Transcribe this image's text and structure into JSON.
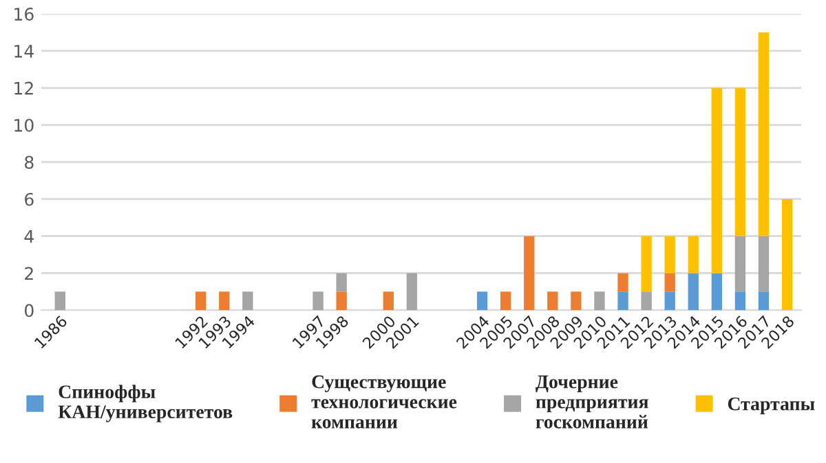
{
  "chart_data": {
    "type": "bar",
    "stacked": true,
    "categories": [
      "1986",
      null,
      null,
      null,
      null,
      null,
      "1992",
      "1993",
      "1994",
      null,
      null,
      "1997",
      "1998",
      null,
      "2000",
      "2001",
      null,
      null,
      "2004",
      "2005",
      "2007",
      "2008",
      "2009",
      "2010",
      "2011",
      "2012",
      "2013",
      "2014",
      "2015",
      "2016",
      "2017",
      "2018"
    ],
    "series": [
      {
        "name": "Спиноффы КАН/университетов",
        "color": "#5b9bd5",
        "values": [
          null,
          null,
          null,
          null,
          null,
          null,
          null,
          null,
          null,
          null,
          null,
          null,
          null,
          null,
          null,
          null,
          null,
          null,
          1,
          null,
          null,
          null,
          null,
          null,
          1,
          null,
          1,
          2,
          2,
          1,
          1,
          null
        ]
      },
      {
        "name": "Существующие технологические компании",
        "color": "#ed7d31",
        "values": [
          null,
          null,
          null,
          null,
          null,
          null,
          1,
          1,
          null,
          null,
          null,
          null,
          1,
          null,
          1,
          null,
          null,
          null,
          null,
          1,
          4,
          1,
          1,
          null,
          1,
          null,
          1,
          null,
          null,
          null,
          null,
          null
        ]
      },
      {
        "name": "Дочерние предприятия госкомпаний",
        "color": "#a5a5a5",
        "values": [
          1,
          null,
          null,
          null,
          null,
          null,
          null,
          null,
          1,
          null,
          null,
          1,
          1,
          null,
          null,
          2,
          null,
          null,
          null,
          null,
          null,
          null,
          null,
          1,
          null,
          1,
          null,
          null,
          null,
          3,
          3,
          null
        ]
      },
      {
        "name": "Стартапы",
        "color": "#ffc000",
        "values": [
          null,
          null,
          null,
          null,
          null,
          null,
          null,
          null,
          null,
          null,
          null,
          null,
          null,
          null,
          null,
          null,
          null,
          null,
          null,
          null,
          null,
          null,
          null,
          null,
          null,
          3,
          2,
          2,
          10,
          8,
          11,
          6
        ]
      }
    ],
    "ylim": [
      0,
      16
    ],
    "yticks": [
      0,
      2,
      4,
      6,
      8,
      10,
      12,
      14,
      16
    ],
    "grid": "y",
    "legend": "bottom"
  }
}
